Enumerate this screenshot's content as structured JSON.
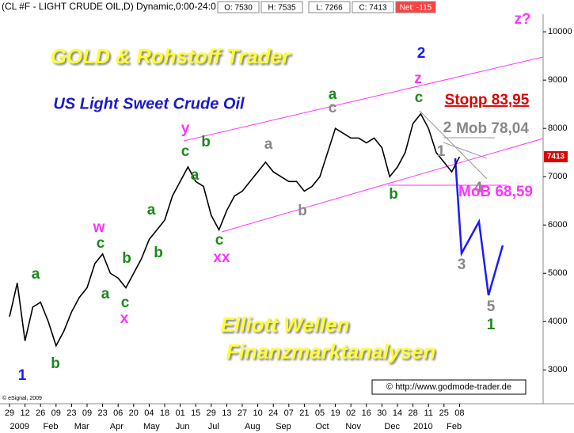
{
  "chart_data": {
    "type": "line",
    "title": "(CL #F - LIGHT CRUDE OIL,D) Dynamic,0:00-24:0",
    "quote": [
      "O: 7530",
      "H: 7535",
      "L: 7266",
      "C: 7413"
    ],
    "net": "Net: -115",
    "last_price": 7413,
    "brand": "GOLD & Rohstoff Trader",
    "subtitle": "US Light Sweet Crude Oil",
    "footer_lines": [
      "Elliott Wellen",
      "Finanzmarktanalysen"
    ],
    "copyright": "© eSignal, 2009",
    "website": "© http://www.godmode-trader.de",
    "categories": [
      "29",
      null,
      "12",
      null,
      "26",
      null,
      "09",
      null,
      "23",
      null,
      "09",
      null,
      "23",
      null,
      "06",
      null,
      "20",
      null,
      "04",
      null,
      "18",
      null,
      "01",
      null,
      "15",
      null,
      "29",
      null,
      "13",
      null,
      "27",
      null,
      "10",
      null,
      "24",
      null,
      "07",
      null,
      "21",
      null,
      "05",
      null,
      "19",
      null,
      "02",
      null,
      "16",
      null,
      "30",
      null,
      "14",
      null,
      "28",
      null,
      "11",
      null,
      "25",
      null,
      "08"
    ],
    "months": [
      "2009",
      "Feb",
      "Mar",
      "Apr",
      "May",
      "Jun",
      "Jul",
      "Aug",
      "Sep",
      "Oct",
      "Nov",
      "Dec",
      "2010",
      "Feb"
    ],
    "series": [
      {
        "name": "CL #F",
        "color": "#000000",
        "values": [
          4100,
          4800,
          3600,
          4300,
          4400,
          4000,
          3500,
          3800,
          4200,
          4500,
          4700,
          5200,
          5400,
          5000,
          4900,
          4700,
          5000,
          5300,
          5700,
          5900,
          6100,
          6600,
          6900,
          7200,
          6900,
          6800,
          6200,
          5900,
          6300,
          6600,
          6700,
          6900,
          7100,
          7300,
          7100,
          7000,
          6900,
          6900,
          6700,
          6800,
          7000,
          7500,
          8000,
          7900,
          7800,
          7800,
          7700,
          7800,
          7600,
          7000,
          7200,
          7500,
          8100,
          8300,
          8000,
          7500,
          7300,
          7100,
          7413
        ]
      }
    ],
    "ylim": [
      2300,
      10330
    ],
    "yticks": [
      3000,
      4000,
      5000,
      6000,
      7000,
      8000,
      9000,
      10000
    ],
    "annotations": [
      {
        "text": "1",
        "color": "#1a1aff"
      },
      {
        "text": "a",
        "color": "#1a8a1a"
      },
      {
        "text": "b",
        "color": "#1a8a1a"
      },
      {
        "text": "w",
        "color": "#ff33ff"
      },
      {
        "text": "c",
        "color": "#1a8a1a"
      },
      {
        "text": "a",
        "color": "#1a8a1a"
      },
      {
        "text": "b",
        "color": "#1a8a1a"
      },
      {
        "text": "c",
        "color": "#1a8a1a"
      },
      {
        "text": "x",
        "color": "#ff33ff"
      },
      {
        "text": "b",
        "color": "#1a8a1a"
      },
      {
        "text": "a",
        "color": "#1a8a1a"
      },
      {
        "text": "y",
        "color": "#ff33ff"
      },
      {
        "text": "c",
        "color": "#1a8a1a"
      },
      {
        "text": "b",
        "color": "#1a8a1a"
      },
      {
        "text": "a",
        "color": "#1a8a1a"
      },
      {
        "text": "c",
        "color": "#1a8a1a"
      },
      {
        "text": "xx",
        "color": "#ff33ff"
      },
      {
        "text": "a",
        "color": "#888888"
      },
      {
        "text": "b",
        "color": "#888888"
      },
      {
        "text": "c",
        "color": "#888888"
      },
      {
        "text": "a",
        "color": "#1a8a1a"
      },
      {
        "text": "b",
        "color": "#1a8a1a"
      },
      {
        "text": "c",
        "color": "#1a8a1a"
      },
      {
        "text": "z",
        "color": "#ff33ff"
      },
      {
        "text": "2",
        "color": "#1a1aff"
      },
      {
        "text": "z?",
        "color": "#ff33ff"
      },
      {
        "text": "2",
        "color": "#888888"
      },
      {
        "text": "1",
        "color": "#888888"
      },
      {
        "text": "3",
        "color": "#888888"
      },
      {
        "text": "4",
        "color": "#888888"
      },
      {
        "text": "5",
        "color": "#888888"
      },
      {
        "text": "1",
        "color": "#1a8a1a"
      },
      {
        "text": "Stopp 83,95",
        "color": "#e00000"
      },
      {
        "text": "Mob 78,04",
        "color": "#888888"
      },
      {
        "text": "MoB 68,59",
        "color": "#ff33ff"
      }
    ]
  }
}
